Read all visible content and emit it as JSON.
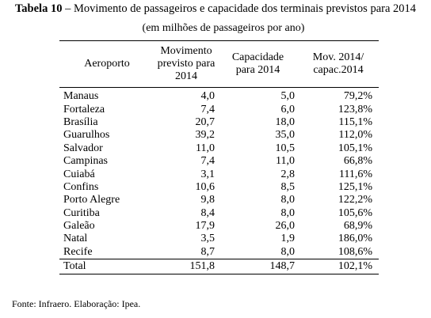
{
  "title": {
    "label": "Tabela 10",
    "text": " – Movimento de passageiros e capacidade dos terminais previstos para 2014"
  },
  "subtitle": "(em milhões de passageiros por ano)",
  "table": {
    "columns": [
      [
        "Aeroporto"
      ],
      [
        "Movimento",
        "previsto para",
        "2014"
      ],
      [
        "Capacidade",
        "para 2014"
      ],
      [
        "Mov. 2014/",
        "capac.2014"
      ]
    ],
    "rows": [
      [
        "Manaus",
        "4,0",
        "5,0",
        "79,2%"
      ],
      [
        "Fortaleza",
        "7,4",
        "6,0",
        "123,8%"
      ],
      [
        "Brasília",
        "20,7",
        "18,0",
        "115,1%"
      ],
      [
        "Guarulhos",
        "39,2",
        "35,0",
        "112,0%"
      ],
      [
        "Salvador",
        "11,0",
        "10,5",
        "105,1%"
      ],
      [
        "Campinas",
        "7,4",
        "11,0",
        "66,8%"
      ],
      [
        "Cuiabá",
        "3,1",
        "2,8",
        "111,6%"
      ],
      [
        "Confins",
        "10,6",
        "8,5",
        "125,1%"
      ],
      [
        "Porto Alegre",
        "9,8",
        "8,0",
        "122,2%"
      ],
      [
        "Curitiba",
        "8,4",
        "8,0",
        "105,6%"
      ],
      [
        "Galeão",
        "17,9",
        "26,0",
        "68,9%"
      ],
      [
        "Natal",
        "3,5",
        "1,9",
        "186,0%"
      ],
      [
        "Recife",
        "8,7",
        "8,0",
        "108,6%"
      ]
    ],
    "total": [
      "Total",
      "151,8",
      "148,7",
      "102,1%"
    ]
  },
  "source": "Fonte: Infraero. Elaboração: Ipea."
}
